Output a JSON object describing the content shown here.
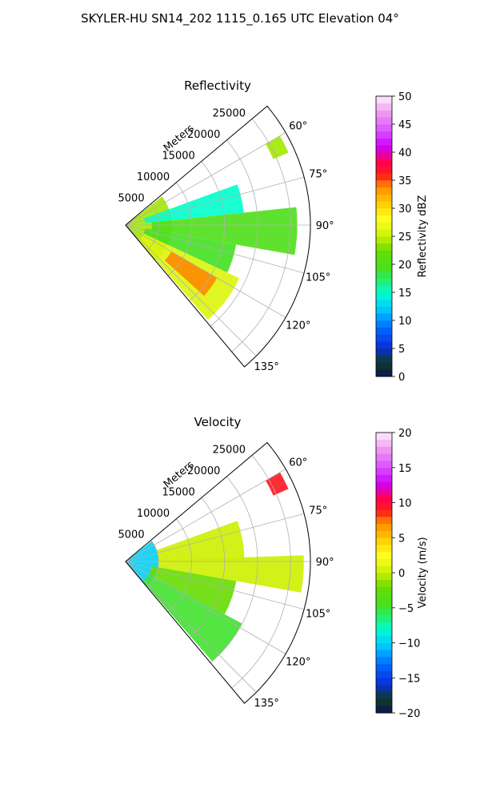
{
  "title": "SKYLER-HU  SN14_202  1115_0.165 UTC Elevation 04°",
  "chart_data": [
    {
      "type": "heatmap",
      "title": "Reflectivity",
      "radial_label": "Meters",
      "radial_ticks": [
        5000,
        10000,
        15000,
        20000,
        25000
      ],
      "radial_tick_labels": [
        "5000",
        "10000",
        "15000",
        "20000",
        "25000"
      ],
      "r_max": 28000,
      "azimuth_range": [
        50,
        140
      ],
      "azimuth_ticks": [
        60,
        75,
        90,
        105,
        120,
        135
      ],
      "azimuth_tick_labels": [
        "60°",
        "75°",
        "90°",
        "105°",
        "120°",
        "135°"
      ],
      "grid": true,
      "colorbar": {
        "label": "Reflectivity dBZ",
        "range": [
          0,
          50
        ],
        "ticks": [
          0,
          5,
          10,
          15,
          20,
          25,
          30,
          35,
          40,
          45,
          50
        ],
        "tick_labels": [
          "0",
          "5",
          "10",
          "15",
          "20",
          "25",
          "30",
          "35",
          "40",
          "45",
          "50"
        ]
      },
      "regions": [
        {
          "az": [
            52,
            140
          ],
          "r": [
            0,
            7000
          ],
          "value": 24
        },
        {
          "az": [
            70,
            84
          ],
          "r": [
            3000,
            18000
          ],
          "value": 15
        },
        {
          "az": [
            84,
            100
          ],
          "r": [
            4000,
            26000
          ],
          "value": 20
        },
        {
          "az": [
            100,
            115
          ],
          "r": [
            3000,
            17000
          ],
          "value": 19
        },
        {
          "az": [
            115,
            139
          ],
          "r": [
            3000,
            19000
          ],
          "value": 26
        },
        {
          "az": [
            120,
            132
          ],
          "r": [
            8000,
            16000
          ],
          "value": 34
        },
        {
          "az": [
            60,
            66
          ],
          "r": [
            24500,
            27000
          ],
          "value": 24
        }
      ]
    },
    {
      "type": "heatmap",
      "title": "Velocity",
      "radial_label": "Meters",
      "radial_ticks": [
        5000,
        10000,
        15000,
        20000,
        25000
      ],
      "radial_tick_labels": [
        "5000",
        "10000",
        "15000",
        "20000",
        "25000"
      ],
      "r_max": 28000,
      "azimuth_range": [
        50,
        140
      ],
      "azimuth_ticks": [
        60,
        75,
        90,
        105,
        120,
        135
      ],
      "azimuth_tick_labels": [
        "60°",
        "75°",
        "90°",
        "105°",
        "120°",
        "135°"
      ],
      "grid": true,
      "colorbar": {
        "label": "Velocity (m/s)",
        "range": [
          -20,
          20
        ],
        "ticks": [
          -20,
          -15,
          -10,
          -5,
          0,
          5,
          10,
          15,
          20
        ],
        "tick_labels": [
          "−20",
          "−15",
          "−10",
          "−5",
          "0",
          "5",
          "10",
          "15",
          "20"
        ]
      },
      "regions": [
        {
          "az": [
            52,
            140
          ],
          "r": [
            0,
            5000
          ],
          "value": -10
        },
        {
          "az": [
            70,
            90
          ],
          "r": [
            5000,
            18000
          ],
          "value": 0
        },
        {
          "az": [
            88,
            100
          ],
          "r": [
            5000,
            27000
          ],
          "value": 0
        },
        {
          "az": [
            100,
            118
          ],
          "r": [
            4000,
            17000
          ],
          "value": -2
        },
        {
          "az": [
            118,
            139
          ],
          "r": [
            4000,
            20000
          ],
          "value": -5
        },
        {
          "az": [
            60,
            66
          ],
          "r": [
            24500,
            27000
          ],
          "value": 9
        }
      ]
    }
  ]
}
